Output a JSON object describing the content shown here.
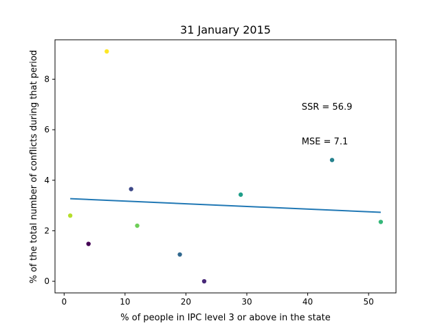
{
  "chart_data": {
    "type": "scatter",
    "title": "31 January 2015",
    "xlabel": "% of people in IPC level 3 or above in the state",
    "ylabel": "% of the total number of conflicts during that period",
    "xlim": [
      -1.5,
      54.5
    ],
    "ylim": [
      -0.46,
      9.56
    ],
    "xticks": [
      0,
      10,
      20,
      30,
      40,
      50
    ],
    "yticks": [
      0,
      2,
      4,
      6,
      8
    ],
    "grid": false,
    "points": [
      {
        "x": 4,
        "y": 1.48,
        "color": "#440154"
      },
      {
        "x": 23,
        "y": 0.0,
        "color": "#482878"
      },
      {
        "x": 11,
        "y": 3.65,
        "color": "#3e4989"
      },
      {
        "x": 19,
        "y": 1.06,
        "color": "#31688e"
      },
      {
        "x": 44,
        "y": 4.8,
        "color": "#26828e"
      },
      {
        "x": 29,
        "y": 3.43,
        "color": "#1f9e89"
      },
      {
        "x": 52,
        "y": 2.35,
        "color": "#35b779"
      },
      {
        "x": 12,
        "y": 2.2,
        "color": "#6ece58"
      },
      {
        "x": 1,
        "y": 2.6,
        "color": "#b5de2b"
      },
      {
        "x": 7,
        "y": 9.1,
        "color": "#fde725"
      }
    ],
    "fit_line": {
      "x": [
        1,
        52
      ],
      "y": [
        3.27,
        2.73
      ],
      "color": "#1f77b4"
    },
    "annotations": [
      {
        "text": "SSR = 56.9",
        "x": 39,
        "y": 6.9
      },
      {
        "text": "MSE = 7.1",
        "x": 39,
        "y": 5.53
      }
    ]
  }
}
